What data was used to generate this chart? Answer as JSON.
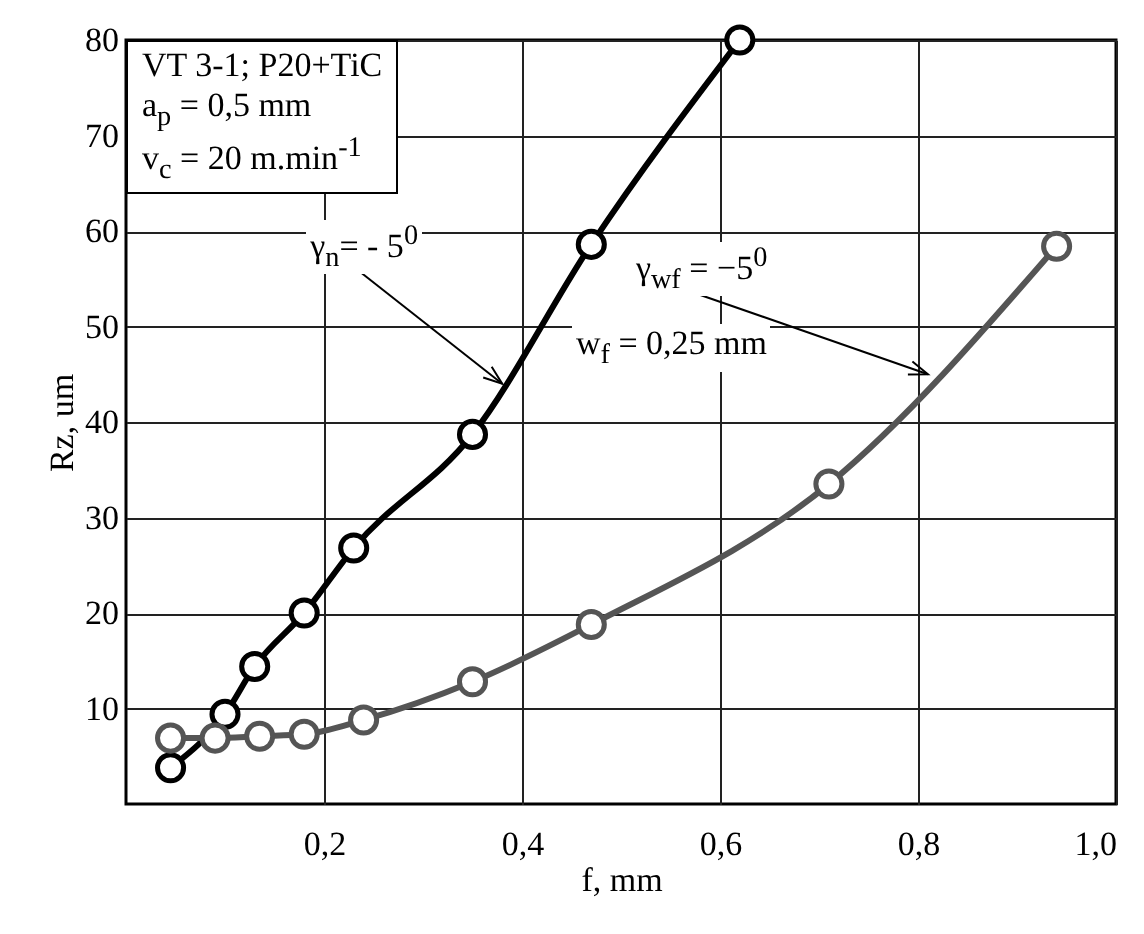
{
  "chart_data": {
    "type": "line",
    "xlabel": "f, mm",
    "ylabel": "Rz, um",
    "series": [
      {
        "color": "#000000",
        "x": [
          0.045,
          0.1,
          0.13,
          0.18,
          0.23,
          0.35,
          0.47,
          0.62
        ],
        "values": [
          3.8,
          9.4,
          14.4,
          20,
          26.8,
          38.7,
          58.6,
          80
        ]
      },
      {
        "color": "#555555",
        "x": [
          0.045,
          0.09,
          0.135,
          0.18,
          0.24,
          0.35,
          0.47,
          0.71,
          0.94
        ],
        "values": [
          6.9,
          6.9,
          7.1,
          7.3,
          8.8,
          12.8,
          18.8,
          33.5,
          58.4
        ]
      }
    ],
    "xlim": [
      0,
      1.0
    ],
    "ylim": [
      0,
      80
    ],
    "xticks": [
      {
        "value": 0.2,
        "label": "0,2"
      },
      {
        "value": 0.4,
        "label": "0,4"
      },
      {
        "value": 0.6,
        "label": "0,6"
      },
      {
        "value": 0.8,
        "label": "0,8"
      },
      {
        "value": 1.0,
        "label": "1,0"
      }
    ],
    "yticks": [
      10,
      20,
      30,
      40,
      50,
      60,
      70,
      80
    ],
    "grid": true,
    "marker": "circle",
    "line_style": "solid",
    "annotations": [
      "VT 3-1; P20+TiC",
      "a$_{p}$ = 0,5 mm",
      "v$_{c}$ = 20 m.min$^{-1}$",
      {
        "text": "γ$_{n}$= - 5$^{0}$",
        "x": 0.38,
        "y": 44
      },
      {
        "text": "γ$_{wf}$ = −5$^{0}$",
        "x": 0.81,
        "y": 45
      },
      "w$_{f}$ = 0,25 mm"
    ]
  }
}
